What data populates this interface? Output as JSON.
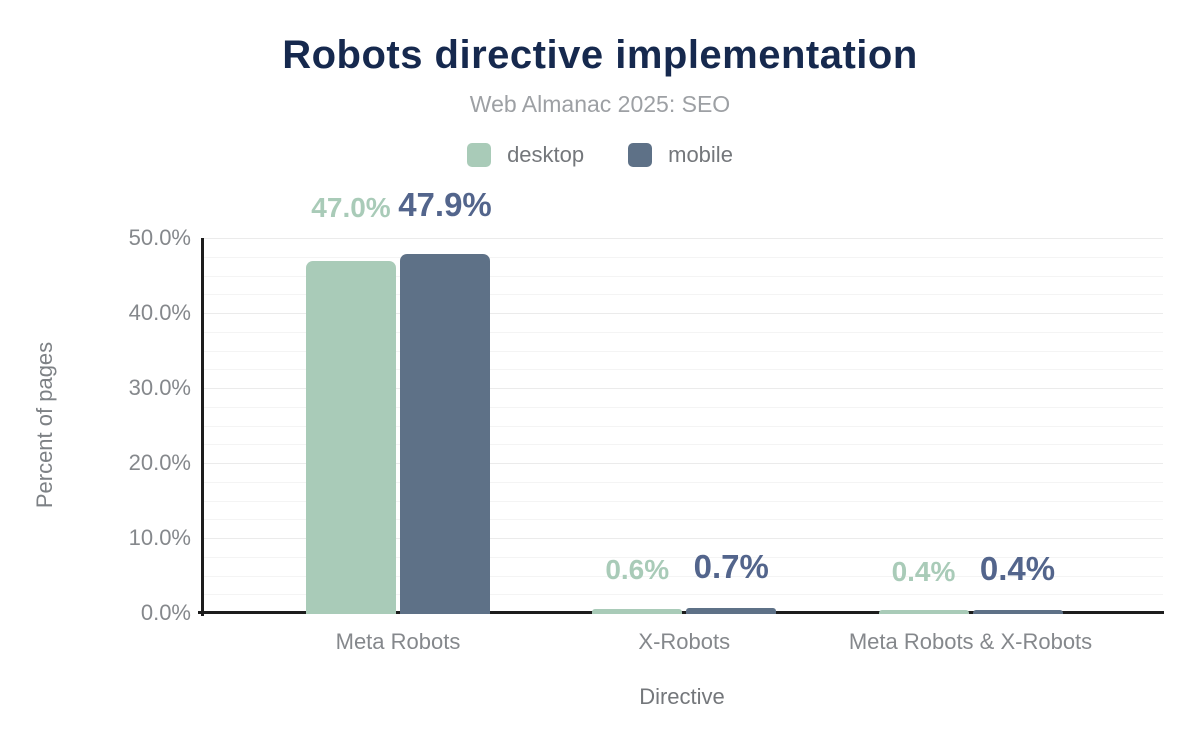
{
  "chart_data": {
    "type": "bar",
    "title": "Robots directive implementation",
    "subtitle": "Web Almanac 2025: SEO",
    "categories": [
      "Meta Robots",
      "X-Robots",
      "Meta Robots & X-Robots"
    ],
    "series": [
      {
        "name": "desktop",
        "color": "#a9cbb8",
        "label_color": "#a9cbb8",
        "values": [
          47.0,
          0.6,
          0.4
        ]
      },
      {
        "name": "mobile",
        "color": "#5e7187",
        "label_color": "#53658c",
        "values": [
          47.9,
          0.7,
          0.4
        ]
      }
    ],
    "annotations": {
      "desktop": [
        "47.0%",
        "0.6%",
        "0.4%"
      ],
      "mobile": [
        "47.9%",
        "0.7%",
        "0.4%"
      ]
    },
    "xlabel": "Directive",
    "ylabel": "Percent of pages",
    "ylim": [
      0,
      50
    ],
    "ytick_labels": [
      "0.0%",
      "10.0%",
      "20.0%",
      "30.0%",
      "40.0%",
      "50.0%"
    ],
    "ytick_step": 10,
    "minor_grid_step": 2.5,
    "grid": true,
    "legend_position": "top"
  },
  "legend": {
    "items": [
      {
        "label": "desktop",
        "color": "#a9cbb8"
      },
      {
        "label": "mobile",
        "color": "#5e7187"
      }
    ]
  },
  "colors": {
    "background": "#ffffff",
    "title": "#16294e",
    "subtitle": "#9da0a4",
    "axis_line": "#1d1d1d",
    "gridline_minor": "#f4f4f4",
    "gridline_major": "#ebebeb",
    "axis_text": "#85888c"
  }
}
